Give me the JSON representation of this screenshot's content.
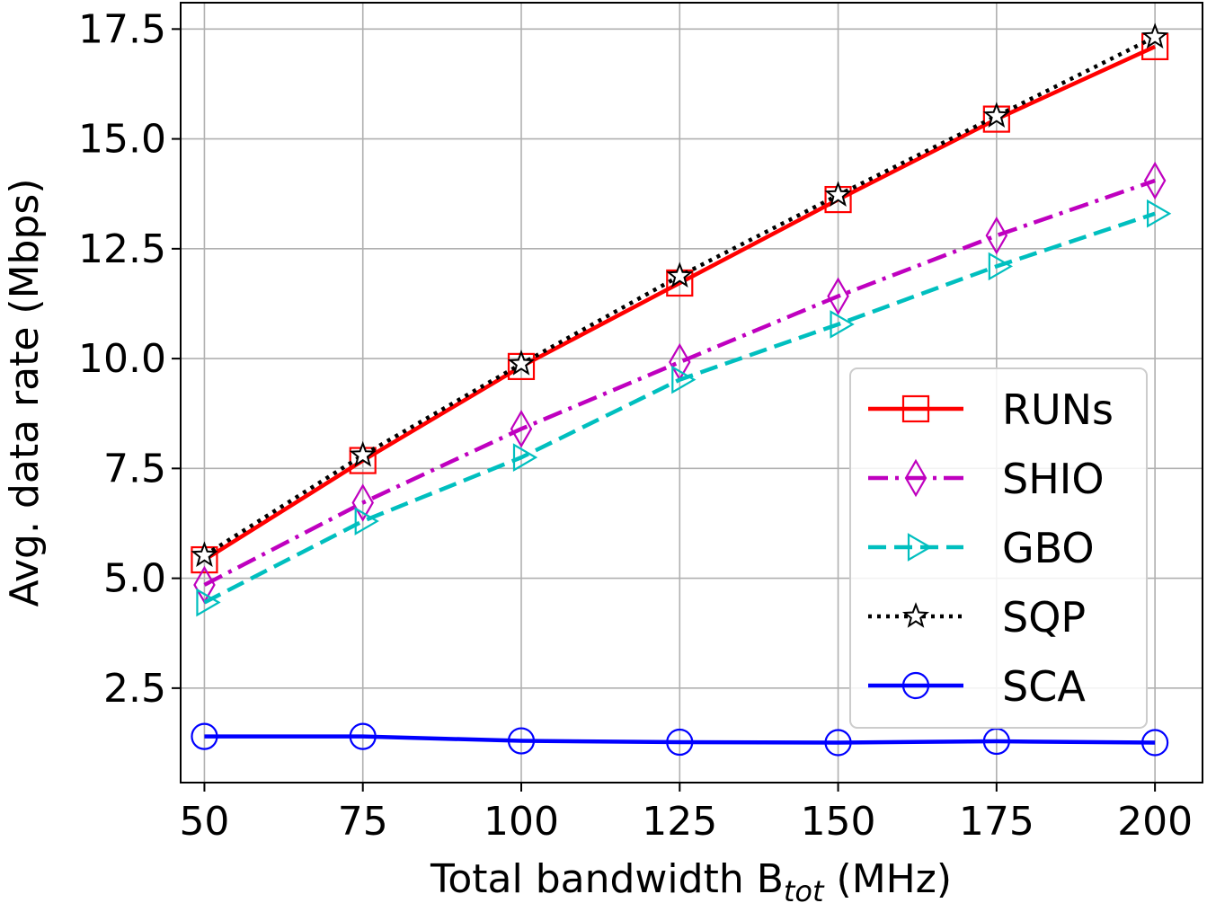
{
  "chart_data": {
    "type": "line",
    "title": "",
    "xlabel": "Total bandwidth B",
    "xlabel_sub": "tot",
    "xlabel_suffix": " (MHz)",
    "ylabel": "Avg. data rate (Mbps)",
    "x": [
      50,
      75,
      100,
      125,
      150,
      175,
      200
    ],
    "xticks": [
      "50",
      "75",
      "100",
      "125",
      "150",
      "175",
      "200"
    ],
    "yticks": [
      2.5,
      5.0,
      7.5,
      10.0,
      12.5,
      15.0,
      17.5
    ],
    "ytick_labels": [
      "2.5",
      "5.0",
      "7.5",
      "10.0",
      "12.5",
      "15.0",
      "17.5"
    ],
    "xlim": [
      46.25,
      207.5
    ],
    "ylim": [
      0.35,
      18.1
    ],
    "grid": true,
    "legend_position": "center-right",
    "series": [
      {
        "name": "RUNs",
        "color": "#ff0000",
        "linestyle": "solid",
        "marker": "square",
        "values": [
          5.42,
          7.68,
          9.82,
          11.72,
          13.62,
          15.45,
          17.1
        ]
      },
      {
        "name": "SHIO",
        "color": "#bf00bf",
        "linestyle": "dashdot",
        "marker": "diamond",
        "values": [
          4.85,
          6.72,
          8.4,
          9.92,
          11.42,
          12.8,
          14.05
        ]
      },
      {
        "name": "GBO",
        "color": "#00bfbf",
        "linestyle": "dashed",
        "marker": "triangle-right",
        "values": [
          4.45,
          6.3,
          7.75,
          9.52,
          10.78,
          12.1,
          13.3
        ]
      },
      {
        "name": "SQP",
        "color": "#000000",
        "linestyle": "dotted",
        "marker": "star",
        "values": [
          5.52,
          7.8,
          9.88,
          11.88,
          13.72,
          15.52,
          17.32
        ]
      },
      {
        "name": "SCA",
        "color": "#0000ff",
        "linestyle": "solid",
        "marker": "circle",
        "values": [
          1.4,
          1.4,
          1.3,
          1.27,
          1.26,
          1.29,
          1.26
        ]
      }
    ]
  }
}
